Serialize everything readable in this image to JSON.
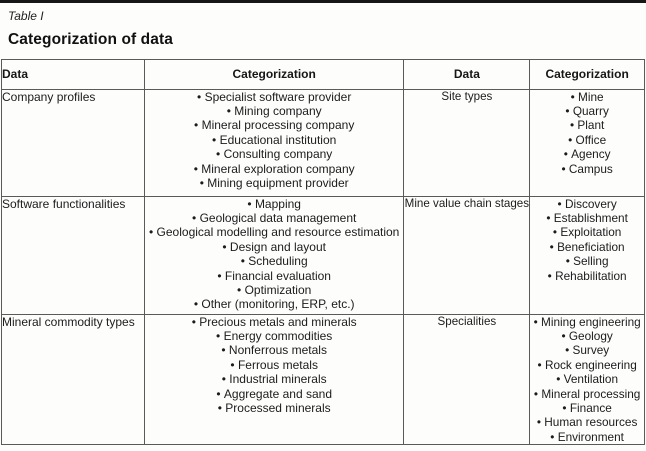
{
  "page": {
    "table_label": "Table I",
    "title": "Categorization of data"
  },
  "table": {
    "headers": [
      "Data",
      "Categorization",
      "Data",
      "Categorization"
    ],
    "rows": [
      {
        "left_data": "Company profiles",
        "left_items": [
          "Specialist software provider",
          "Mining company",
          "Mineral processing company",
          "Educational institution",
          "Consulting company",
          "Mineral exploration company",
          "Mining equipment provider"
        ],
        "right_data": "Site types",
        "right_items": [
          "Mine",
          "Quarry",
          "Plant",
          "Office",
          "Agency",
          "Campus"
        ]
      },
      {
        "left_data": "Software functionalities",
        "left_items": [
          "Mapping",
          "Geological data management",
          "Geological modelling and resource estimation",
          "Design and layout",
          "Scheduling",
          "Financial evaluation",
          "Optimization",
          "Other (monitoring, ERP, etc.)"
        ],
        "right_data": "Mine value chain stages",
        "right_items": [
          "Discovery",
          "Establishment",
          "Exploitation",
          "Beneficiation",
          "Selling",
          "Rehabilitation"
        ]
      },
      {
        "left_data": "Mineral commodity types",
        "left_items": [
          "Precious metals and minerals",
          "Energy commodities",
          "Nonferrous metals",
          "Ferrous metals",
          "Industrial minerals",
          "Aggregate and sand",
          "Processed minerals"
        ],
        "right_data": "Specialities",
        "right_items": [
          "Mining engineering",
          "Geology",
          "Survey",
          "Rock engineering",
          "Ventilation",
          "Mineral processing",
          "Finance",
          "Human resources",
          "Environment"
        ]
      }
    ]
  },
  "colors": {
    "text": "#1c1c1c",
    "border": "#5a5a5a",
    "top_rule": "#161616",
    "background": "#fdfdfc"
  }
}
